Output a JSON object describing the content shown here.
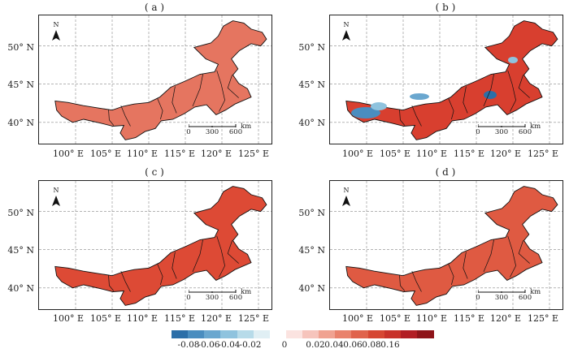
{
  "panels": [
    {
      "id": "a",
      "label": "( a )"
    },
    {
      "id": "b",
      "label": "( b )"
    },
    {
      "id": "c",
      "label": "( c )"
    },
    {
      "id": "d",
      "label": "( d )"
    }
  ],
  "axes": {
    "lat_labels": [
      "50° N",
      "45° N",
      "40° N"
    ],
    "lon_labels": [
      "100° E",
      "105° E",
      "110° E",
      "115° E",
      "120° E",
      "125° E"
    ],
    "lon_range": [
      95,
      127
    ],
    "lat_range": [
      37,
      54
    ],
    "grid": "dashed"
  },
  "north_arrow": {
    "label": "N"
  },
  "scale_bar": {
    "ticks": [
      "0",
      "300",
      "600"
    ],
    "unit": "km"
  },
  "colorbar": {
    "tick_labels": [
      "-0.08",
      "-0.06",
      "-0.04",
      "-0.02",
      "0",
      "0.02",
      "0.04",
      "0.06",
      "0.08",
      "0.16"
    ],
    "colors": [
      "#2c6fa8",
      "#4a8dbf",
      "#6aa7cf",
      "#8fc3de",
      "#b7dbe9",
      "#e0eff4",
      "#ffffff",
      "#fbe3e0",
      "#f6c4bc",
      "#f0a291",
      "#e9826c",
      "#e0634c",
      "#d64733",
      "#c8322a",
      "#b21e24",
      "#8e1419"
    ]
  },
  "map_colors": {
    "a": "#e57560",
    "b": "#d83f2f",
    "c": "#dd4a35",
    "d": "#df5a42"
  }
}
